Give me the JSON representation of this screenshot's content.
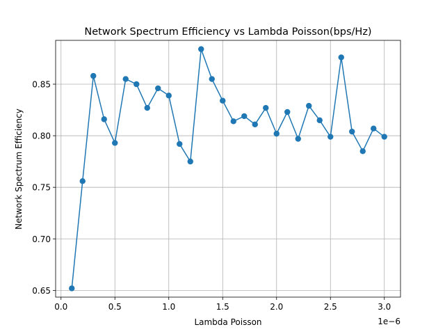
{
  "chart_data": {
    "type": "line",
    "title": "Network Spectrum Efficiency vs Lambda Poisson(bps/Hz)",
    "xlabel": "Lambda Poisson",
    "ylabel": "Network Spectrum Efficiency",
    "x_multiplier_label": "1e−6",
    "x_scale": 1e-06,
    "xlim": [
      -0.05,
      3.15
    ],
    "ylim": [
      0.6435,
      0.8925
    ],
    "x_ticks": [
      0.0,
      0.5,
      1.0,
      1.5,
      2.0,
      2.5,
      3.0
    ],
    "x_tick_labels": [
      "0.0",
      "0.5",
      "1.0",
      "1.5",
      "2.0",
      "2.5",
      "3.0"
    ],
    "y_ticks": [
      0.65,
      0.7,
      0.75,
      0.8,
      0.85
    ],
    "y_tick_labels": [
      "0.65",
      "0.70",
      "0.75",
      "0.80",
      "0.85"
    ],
    "grid": true,
    "series": [
      {
        "color": "#1f77b4",
        "marker": "circle",
        "x": [
          0.1,
          0.2,
          0.3,
          0.4,
          0.5,
          0.6,
          0.7,
          0.8,
          0.9,
          1.0,
          1.1,
          1.2,
          1.3,
          1.4,
          1.5,
          1.6,
          1.7,
          1.8,
          1.9,
          2.0,
          2.1,
          2.2,
          2.3,
          2.4,
          2.5,
          2.6,
          2.7,
          2.8,
          2.9,
          3.0
        ],
        "y": [
          0.652,
          0.756,
          0.858,
          0.816,
          0.793,
          0.855,
          0.85,
          0.827,
          0.846,
          0.839,
          0.792,
          0.775,
          0.884,
          0.855,
          0.834,
          0.814,
          0.819,
          0.811,
          0.827,
          0.802,
          0.823,
          0.797,
          0.829,
          0.815,
          0.799,
          0.876,
          0.804,
          0.785,
          0.807,
          0.799
        ]
      }
    ]
  }
}
